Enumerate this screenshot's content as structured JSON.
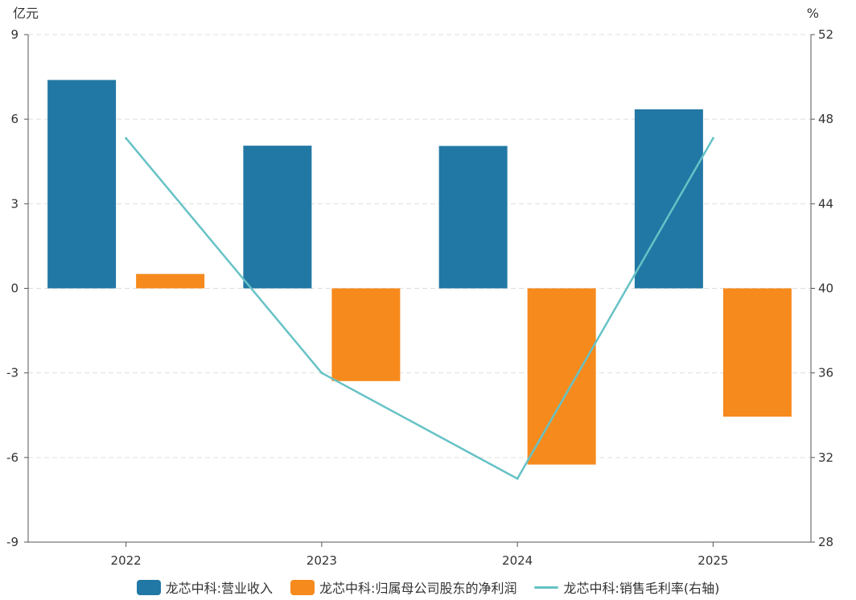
{
  "chart_data": {
    "type": "bar",
    "categories": [
      "2022",
      "2023",
      "2024",
      "2025"
    ],
    "left_axis": {
      "unit": "亿元",
      "ticks": [
        "9",
        "6",
        "3",
        "0",
        "-3",
        "-6",
        "-9"
      ],
      "range": [
        -9,
        9
      ]
    },
    "right_axis": {
      "unit": "%",
      "ticks": [
        "52",
        "48",
        "44",
        "40",
        "36",
        "32",
        "28"
      ],
      "range": [
        28,
        52
      ]
    },
    "series": [
      {
        "name": "龙芯中科:营业收入",
        "kind": "bar",
        "axis": "left",
        "color": "#2278a4",
        "values": [
          7.39,
          5.06,
          5.05,
          6.35
        ]
      },
      {
        "name": "龙芯中科:归属母公司股东的净利润",
        "kind": "bar",
        "axis": "left",
        "color": "#f68a1d",
        "values": [
          0.51,
          -3.29,
          -6.25,
          -4.55
        ]
      },
      {
        "name": "龙芯中科:销售毛利率(右轴)",
        "kind": "line",
        "axis": "right",
        "color": "#66c2c6",
        "values": [
          47.1,
          36.0,
          31.0,
          47.1
        ]
      }
    ],
    "grid": "horizontal-dashed",
    "legend_position": "bottom"
  }
}
